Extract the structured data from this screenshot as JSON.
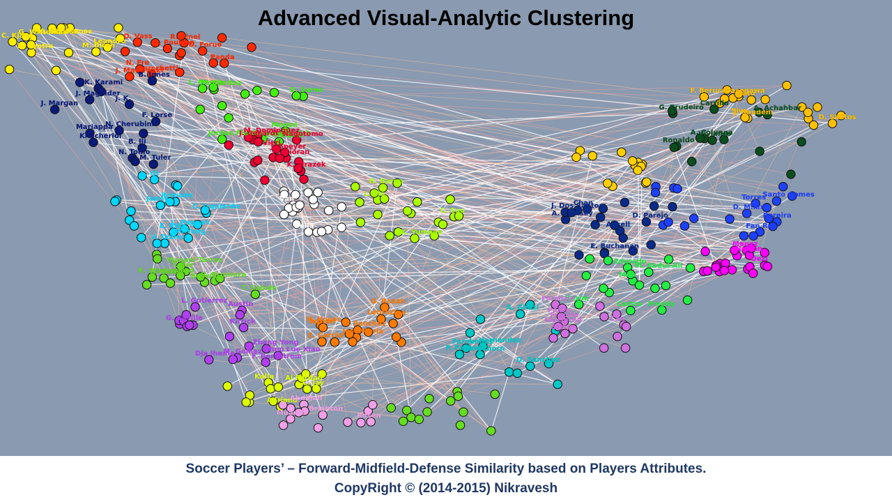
{
  "title": "Advanced Visual-Analytic Clustering",
  "caption_line1": "Soccer Players’ – Forward-Midfield-Defense Similarity based on Players Attributes.",
  "caption_line2": "CopyRight © (2014-2015)  Nikravesh",
  "colors": {
    "background": "#8a9ab0",
    "footer": "#ffffff",
    "caption": "#1f3864",
    "edge_white": "#ffffff",
    "edge_pink": "#f4a3a3",
    "edge_peach": "#f7c9a0"
  },
  "clusters": [
    {
      "name": "yellow-top-left",
      "color": "#ffee00",
      "labels": [
        "S. Ramos",
        "G. Writoniak",
        "S. Cost",
        "Leandro",
        "K. Gl",
        "M. Biron",
        "C. Kjaer",
        "L. Vyntra"
      ]
    },
    {
      "name": "red",
      "color": "#ff2a00",
      "labels": [
        "N. Fre",
        "C. Poulsen",
        "J. Marlowski",
        "Barcchetti",
        "R. Pinel",
        "D. Forue",
        "Panda",
        "O. Vass"
      ]
    },
    {
      "name": "navy",
      "color": "#0a1a78",
      "labels": [
        "N. Tomo",
        "M. Tuler",
        "B. Ili",
        "N. Cherubini",
        "J. Margan",
        "J. Magalder",
        "Khacheridi",
        "J. K.",
        "B. Jones",
        "Mariappa",
        "K. Karami",
        "F. Lorse"
      ]
    },
    {
      "name": "green",
      "color": "#44ee11",
      "labels": [
        "Moeun",
        "J. Mensah",
        "Jordan Plata",
        "M. Benitez",
        "L. Mendo",
        "Kim Kwang-Suk",
        "O. Sarno"
      ]
    },
    {
      "name": "crimson",
      "color": "#ee0033",
      "labels": [
        "M. Dominguez",
        "M. Cioran",
        "J. Speyer",
        "K. Mrazek",
        "Vieri",
        "J. Gehardt",
        "Nagotomo"
      ]
    },
    {
      "name": "cyan",
      "color": "#00d8ff",
      "labels": [
        "M. Yang",
        "V. Tamer",
        "E. Reis",
        "L. Gr",
        "C. Izquierdo",
        "Romano",
        "L. Pagnan",
        "Jonny"
      ]
    },
    {
      "name": "white",
      "color": "#ffffff",
      "labels": [
        "Van",
        "Bella"
      ]
    },
    {
      "name": "yellow-green",
      "color": "#aaff00",
      "labels": [
        "K. Yumaon",
        "L. Mo",
        "H. Baron",
        "C. Sau"
      ]
    },
    {
      "name": "light-green",
      "color": "#66dd22",
      "labels": [
        "T. Ber",
        "T. Salnde",
        "R. Espinoza",
        "K. Stadsgaard",
        "G. Corez",
        "Manuel Torres",
        "Boselli"
      ]
    },
    {
      "name": "violet",
      "color": "#b040f0",
      "labels": [
        "Chen Lue Xiao",
        "L. Gutierrez",
        "F. Bergstrom",
        "Zhang Yong",
        "M. Gomez",
        "G. Saville",
        "Austin",
        "Kirrick",
        "Dja Iheme"
      ]
    },
    {
      "name": "lime",
      "color": "#ddff00",
      "labels": [
        "Kalla",
        "C. Jay",
        "Adriano",
        "Al Fardan"
      ]
    },
    {
      "name": "orange",
      "color": "#ff7a00",
      "labels": [
        "N. Kovac",
        "Lebrozina",
        "Adrian",
        "V. Sanchez",
        "E. Garcia",
        "Jose Maria",
        "G. Rasan"
      ]
    },
    {
      "name": "pink",
      "color": "#f0a0e8",
      "labels": [
        "Brighton",
        "Muarah",
        "Abdillah",
        "Rosen"
      ]
    },
    {
      "name": "teal",
      "color": "#00c8c8",
      "labels": [
        "B. Osborn",
        "A. Ghazi",
        "L. Hernandez",
        "Fernandez",
        "P. Fechey",
        "D. Sanchez"
      ]
    },
    {
      "name": "gold-right",
      "color": "#ffc000",
      "labels": [
        "Siva",
        "Pato",
        "Hasegawa",
        "D. Santos",
        "F. Berucci",
        "J. Saudeni"
      ]
    },
    {
      "name": "dark-green",
      "color": "#0b4d1f",
      "labels": [
        "A. Colunga",
        "Carrillo",
        "A. Achahbar",
        "G. Brudeiro",
        "Ronaldo",
        "Vivianco"
      ]
    },
    {
      "name": "blue",
      "color": "#1e40ff",
      "labels": [
        "Santo Gomes",
        "D. Milan",
        "Fan Ren",
        "Torres",
        "Pereira"
      ]
    },
    {
      "name": "dark-blue",
      "color": "#0a2a8a",
      "labels": [
        "A. Ramsey",
        "E. Buchanan",
        "Ansell",
        "D. Parejo",
        "Chan",
        "J. Dos Santos"
      ]
    },
    {
      "name": "magenta",
      "color": "#ff00ff",
      "labels": [
        "Menez",
        "Nelson",
        "Dezi"
      ]
    },
    {
      "name": "bright-green",
      "color": "#22ee44",
      "labels": [
        "M. Abdul-Ali",
        "Eduardo",
        "Mon",
        "Castro",
        "Freddy",
        "Kazim"
      ]
    },
    {
      "name": "lavender",
      "color": "#d070e0",
      "labels": [
        "Freckle",
        "Sama",
        "Forshaw",
        "Pedro",
        "Can",
        "Skjelbred"
      ]
    }
  ]
}
